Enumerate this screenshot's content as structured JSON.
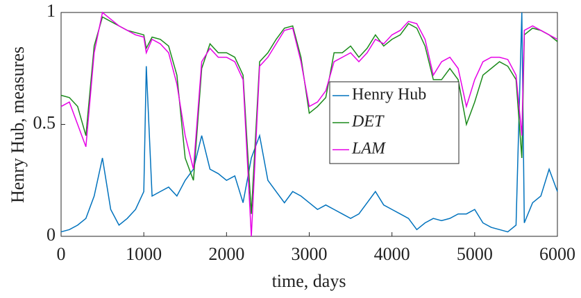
{
  "chart_data": {
    "type": "line",
    "x_label": "time, days",
    "y_label": "Henry Hub, measures",
    "x": [
      0,
      100,
      200,
      300,
      400,
      500,
      600,
      700,
      800,
      900,
      1000,
      1030,
      1100,
      1200,
      1300,
      1400,
      1500,
      1600,
      1700,
      1800,
      1900,
      2000,
      2100,
      2200,
      2300,
      2400,
      2500,
      2600,
      2700,
      2800,
      2900,
      3000,
      3100,
      3200,
      3300,
      3400,
      3500,
      3600,
      3700,
      3800,
      3900,
      4000,
      4100,
      4200,
      4300,
      4400,
      4500,
      4600,
      4700,
      4800,
      4900,
      5000,
      5100,
      5200,
      5300,
      5400,
      5500,
      5570,
      5600,
      5700,
      5800,
      5900,
      6000
    ],
    "series": [
      {
        "name": "Henry Hub",
        "color": "#0072bd",
        "values": [
          0.02,
          0.03,
          0.05,
          0.08,
          0.18,
          0.35,
          0.12,
          0.05,
          0.08,
          0.12,
          0.2,
          0.76,
          0.18,
          0.2,
          0.22,
          0.18,
          0.25,
          0.3,
          0.45,
          0.3,
          0.28,
          0.25,
          0.27,
          0.15,
          0.35,
          0.45,
          0.25,
          0.2,
          0.15,
          0.2,
          0.18,
          0.15,
          0.12,
          0.14,
          0.12,
          0.1,
          0.08,
          0.1,
          0.15,
          0.2,
          0.14,
          0.12,
          0.1,
          0.08,
          0.03,
          0.06,
          0.08,
          0.07,
          0.08,
          0.1,
          0.1,
          0.12,
          0.06,
          0.04,
          0.03,
          0.02,
          0.05,
          1.0,
          0.06,
          0.15,
          0.18,
          0.3,
          0.2
        ]
      },
      {
        "name": "DET",
        "color": "#1a8a1a",
        "values": [
          0.63,
          0.62,
          0.58,
          0.45,
          0.85,
          0.98,
          0.96,
          0.94,
          0.92,
          0.91,
          0.9,
          0.84,
          0.89,
          0.88,
          0.85,
          0.72,
          0.35,
          0.25,
          0.75,
          0.86,
          0.82,
          0.82,
          0.8,
          0.72,
          0.1,
          0.78,
          0.82,
          0.88,
          0.93,
          0.94,
          0.8,
          0.55,
          0.58,
          0.62,
          0.82,
          0.82,
          0.85,
          0.8,
          0.84,
          0.9,
          0.85,
          0.88,
          0.9,
          0.95,
          0.93,
          0.85,
          0.7,
          0.7,
          0.75,
          0.7,
          0.5,
          0.6,
          0.72,
          0.75,
          0.78,
          0.76,
          0.7,
          0.35,
          0.9,
          0.93,
          0.92,
          0.9,
          0.87
        ]
      },
      {
        "name": "LAM",
        "color": "#e600e6",
        "values": [
          0.58,
          0.6,
          0.5,
          0.4,
          0.82,
          1.0,
          0.97,
          0.94,
          0.92,
          0.9,
          0.89,
          0.82,
          0.88,
          0.86,
          0.82,
          0.68,
          0.45,
          0.3,
          0.78,
          0.84,
          0.8,
          0.8,
          0.78,
          0.7,
          0.0,
          0.76,
          0.8,
          0.86,
          0.92,
          0.93,
          0.78,
          0.58,
          0.6,
          0.65,
          0.78,
          0.8,
          0.82,
          0.78,
          0.82,
          0.88,
          0.86,
          0.9,
          0.92,
          0.96,
          0.95,
          0.88,
          0.72,
          0.78,
          0.8,
          0.75,
          0.58,
          0.7,
          0.78,
          0.8,
          0.8,
          0.79,
          0.72,
          0.45,
          0.92,
          0.94,
          0.92,
          0.9,
          0.88
        ]
      }
    ],
    "xlim": [
      0,
      6000
    ],
    "xticks": [
      0,
      1000,
      2000,
      3000,
      4000,
      5000,
      6000
    ],
    "ylim": [
      0,
      1
    ],
    "yticks": [
      0,
      0.5,
      1
    ]
  }
}
